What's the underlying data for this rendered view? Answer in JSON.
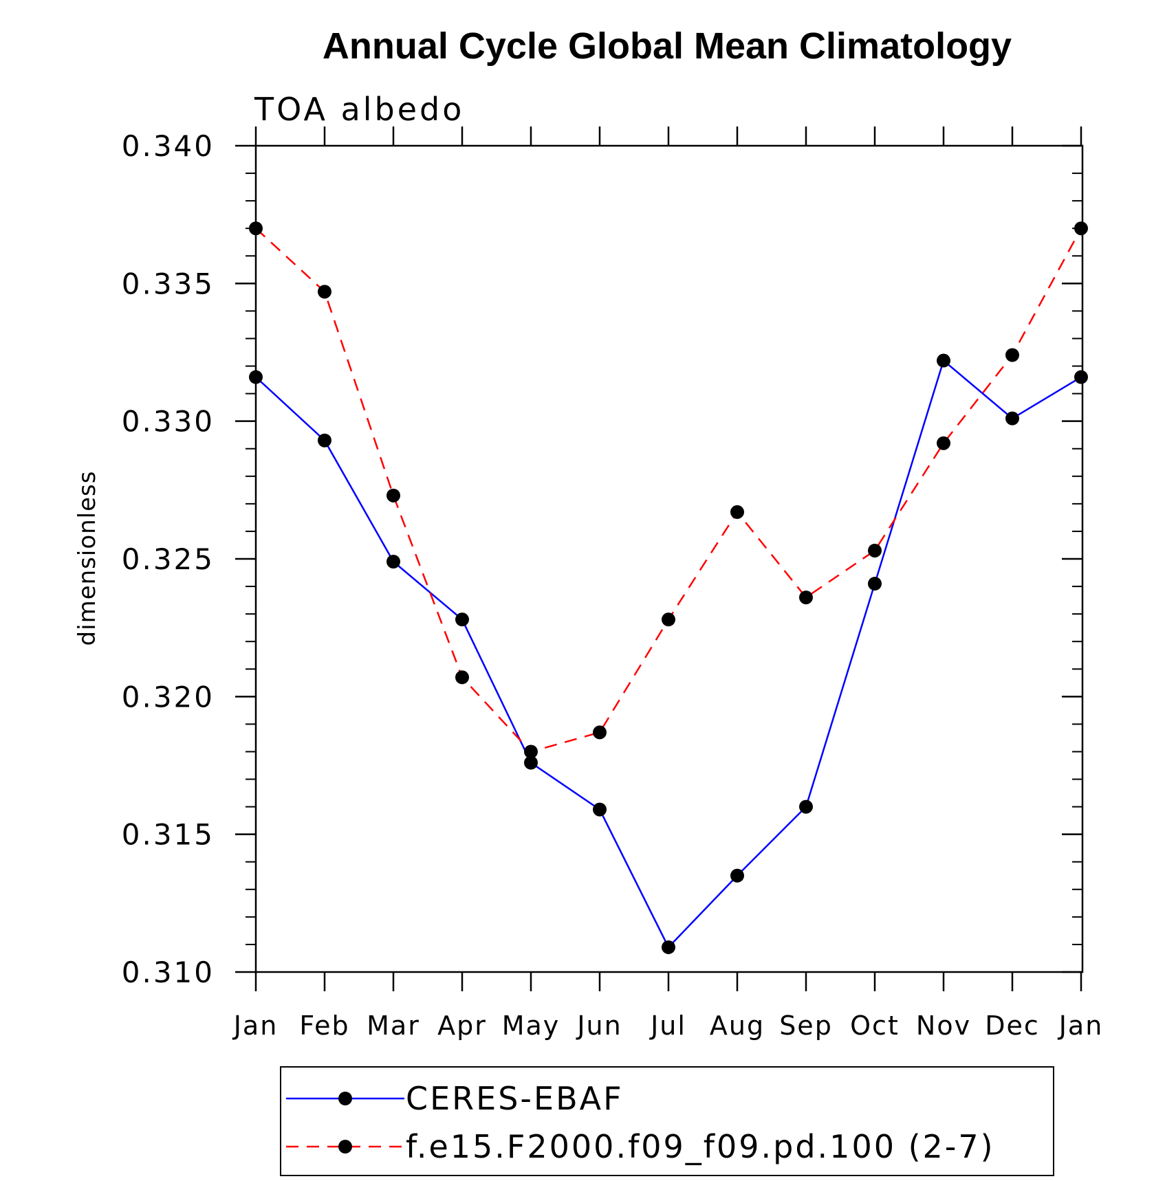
{
  "chart_data": {
    "type": "line",
    "title": "Annual Cycle Global Mean Climatology",
    "subtitle": "TOA albedo",
    "xlabel": "",
    "ylabel": "dimensionless",
    "categories": [
      "Jan",
      "Feb",
      "Mar",
      "Apr",
      "May",
      "Jun",
      "Jul",
      "Aug",
      "Sep",
      "Oct",
      "Nov",
      "Dec",
      "Jan"
    ],
    "ylim": [
      0.31,
      0.34
    ],
    "yticks": [
      "0.310",
      "0.315",
      "0.320",
      "0.325",
      "0.330",
      "0.335",
      "0.340"
    ],
    "series": [
      {
        "name": "CERES-EBAF",
        "color": "#0000ff",
        "dash": "solid",
        "marker": "filled-circle",
        "values": [
          0.3316,
          0.3293,
          0.3249,
          0.3228,
          0.3176,
          0.3159,
          0.3109,
          0.3135,
          0.316,
          0.3241,
          0.3322,
          0.3301,
          0.3316
        ]
      },
      {
        "name": "f.e15.F2000.f09_f09.pd.100 (2-7)",
        "color": "#ff0000",
        "dash": "dashed",
        "marker": "filled-circle",
        "values": [
          0.337,
          0.3347,
          0.3273,
          0.3207,
          0.318,
          0.3187,
          0.3228,
          0.3267,
          0.3236,
          0.3253,
          0.3292,
          0.3324,
          0.337
        ]
      }
    ],
    "grid": false,
    "legend_position": "bottom-center"
  }
}
